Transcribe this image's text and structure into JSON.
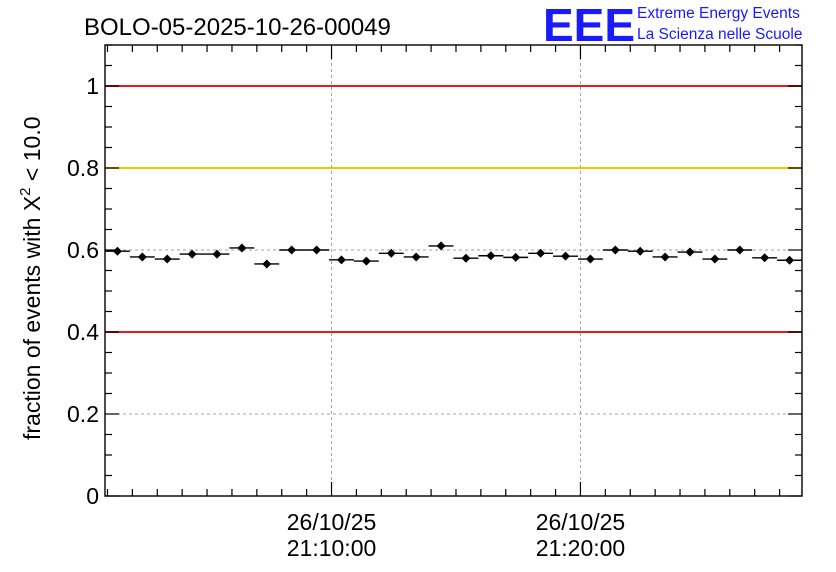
{
  "chart_data": {
    "type": "scatter",
    "title": "BOLO-05-2025-10-26-00049",
    "xlabel": "",
    "ylabel": "fraction of events with X",
    "ylabel_superscript": "2",
    "ylabel_suffix": " < 10.0",
    "ylim": [
      0,
      1.1
    ],
    "yticks": [
      0,
      0.2,
      0.4,
      0.6,
      0.8,
      1
    ],
    "ytick_labels": [
      "0",
      "0.2",
      "0.4",
      "0.6",
      "0.8",
      "1"
    ],
    "xlim_minutes": [
      0,
      28
    ],
    "xticks_major_minutes": [
      9.1,
      19.1
    ],
    "xtick_labels": [
      {
        "date": "26/10/25",
        "time": "21:10:00"
      },
      {
        "date": "26/10/25",
        "time": "21:20:00"
      }
    ],
    "grid": true,
    "bin_width_minutes": 1,
    "x_minutes": [
      0.5,
      1.5,
      2.5,
      3.5,
      4.5,
      5.5,
      6.5,
      7.5,
      8.5,
      9.5,
      10.5,
      11.5,
      12.5,
      13.5,
      14.5,
      15.5,
      16.5,
      17.5,
      18.5,
      19.5,
      20.5,
      21.5,
      22.5,
      23.5,
      24.5,
      25.5,
      26.5,
      27.5
    ],
    "values": [
      0.597,
      0.583,
      0.578,
      0.59,
      0.59,
      0.605,
      0.566,
      0.6,
      0.6,
      0.576,
      0.573,
      0.592,
      0.583,
      0.61,
      0.58,
      0.586,
      0.582,
      0.592,
      0.585,
      0.578,
      0.6,
      0.597,
      0.583,
      0.595,
      0.578,
      0.6,
      0.581,
      0.575
    ],
    "errors": [
      0.008,
      0.008,
      0.008,
      0.008,
      0.008,
      0.008,
      0.008,
      0.008,
      0.008,
      0.008,
      0.008,
      0.008,
      0.008,
      0.008,
      0.008,
      0.008,
      0.008,
      0.008,
      0.008,
      0.008,
      0.008,
      0.008,
      0.008,
      0.008,
      0.008,
      0.008,
      0.008,
      0.008
    ],
    "reference_lines": [
      {
        "y": 1.0,
        "color": "#e41a1c"
      },
      {
        "y": 0.8,
        "color": "#ffc000"
      },
      {
        "y": 0.4,
        "color": "#e41a1c"
      }
    ],
    "grid_color": "#a0a0a0",
    "marker_color": "#000000"
  },
  "logo": {
    "letters": "EEE",
    "line1": "Extreme Energy Events",
    "line2": "La Scienza nelle Scuole",
    "color": "#1a1aff"
  }
}
